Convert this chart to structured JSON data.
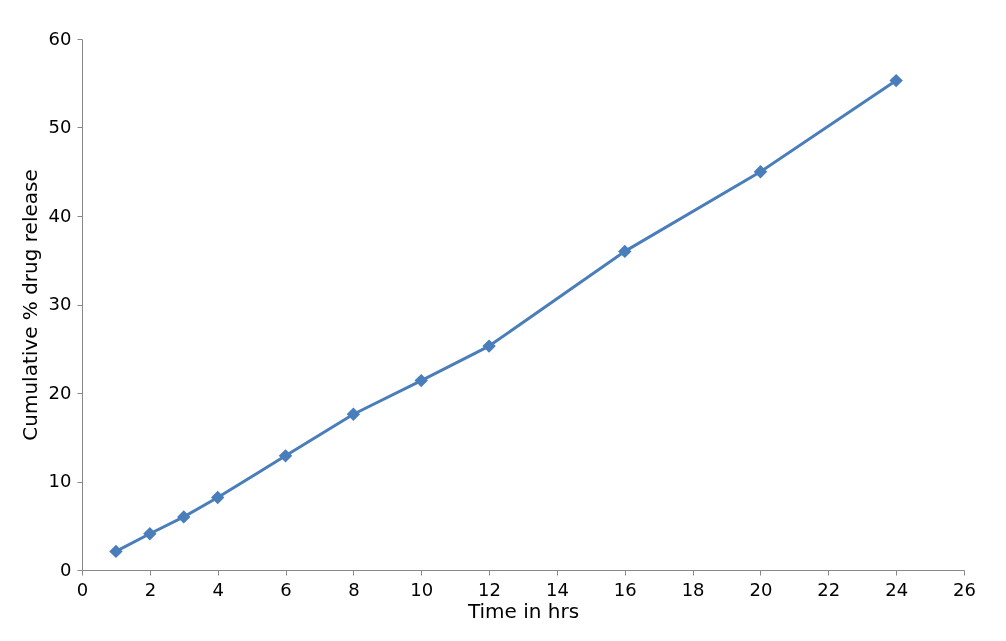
{
  "chart_data": {
    "type": "line",
    "xlabel": "Time in hrs",
    "ylabel": "Cumulative % drug release",
    "x": [
      1,
      2,
      3,
      4,
      6,
      8,
      10,
      12,
      16,
      20,
      24
    ],
    "series": [
      {
        "color": "#4a7ebb",
        "values": [
          2.1,
          4.1,
          6.0,
          8.2,
          12.9,
          17.6,
          21.4,
          25.3,
          36.0,
          45.0,
          55.3
        ]
      }
    ],
    "xlim": [
      0,
      26
    ],
    "xticks": [
      0,
      2,
      4,
      6,
      8,
      10,
      12,
      14,
      16,
      18,
      20,
      22,
      24,
      26
    ],
    "ylim": [
      0,
      60
    ],
    "yticks": [
      0,
      10,
      20,
      30,
      40,
      50,
      60
    ],
    "grid": false,
    "marker": "diamond",
    "line_style": "solid"
  }
}
